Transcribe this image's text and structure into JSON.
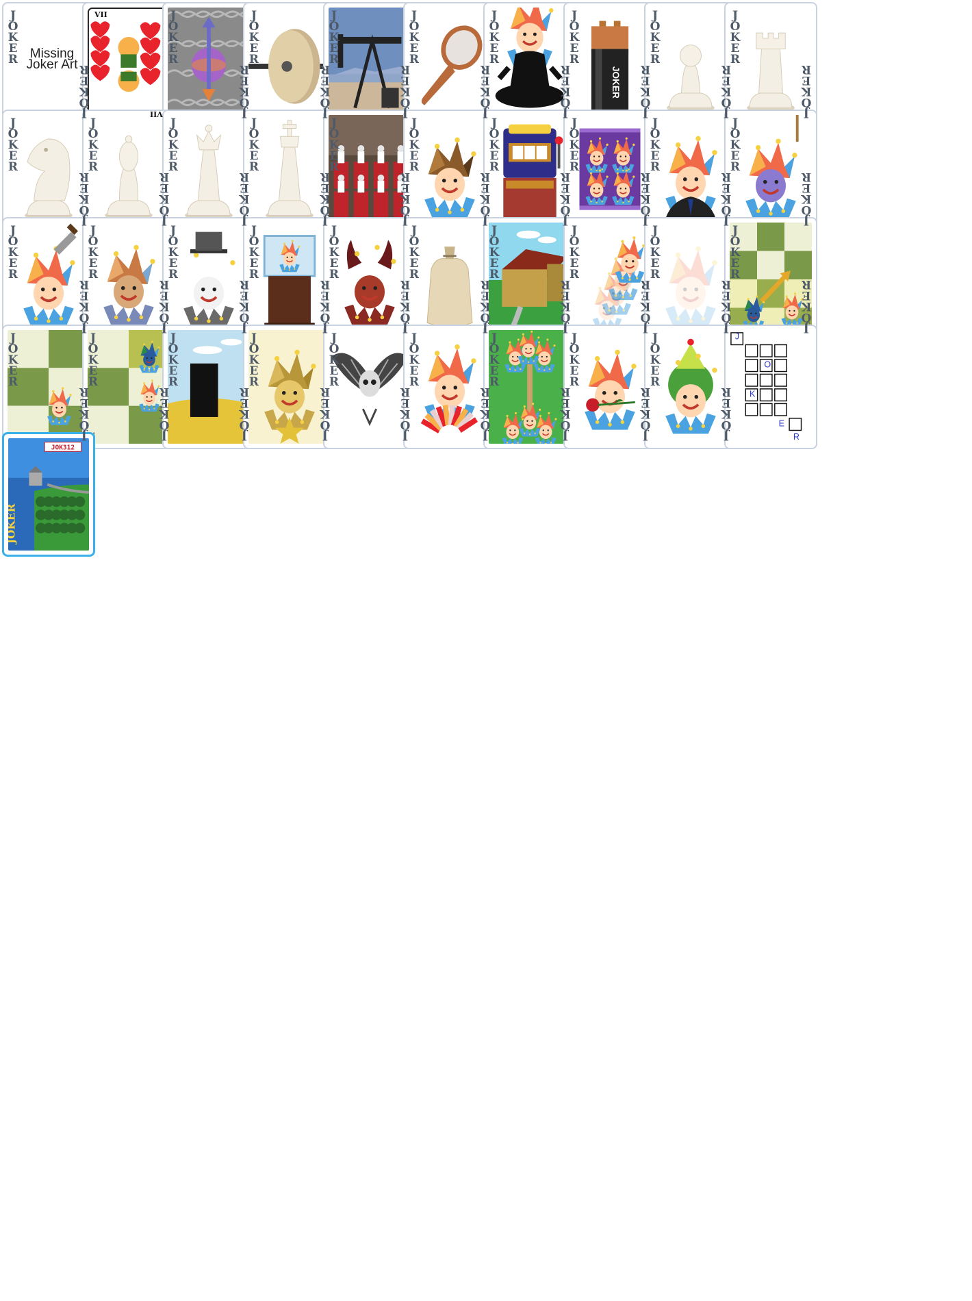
{
  "label": "JOKER",
  "colors": {
    "border": "#c9d2e0",
    "label": "#4e5a68",
    "jester_hat_red": "#f06a4a",
    "jester_hat_orange": "#f7b04a",
    "jester_collar_blue": "#4aa3e0",
    "chess_light": "#eef0d6",
    "chess_dark": "#7a9a4a"
  },
  "cards": [
    {
      "art": "missing",
      "caption": "Missing Joker Art"
    },
    {
      "art": "hearts-seven",
      "corner_top": "VII",
      "corner_bottom": "VII",
      "nolabel": true
    },
    {
      "art": "arrow-globe"
    },
    {
      "art": "millstone"
    },
    {
      "art": "oil-pump"
    },
    {
      "art": "hand-mirror"
    },
    {
      "art": "meditating-jester"
    },
    {
      "art": "battery",
      "battery_text": "JOKER"
    },
    {
      "art": "chess-pawn"
    },
    {
      "art": "chess-rook"
    },
    {
      "art": "chess-knight"
    },
    {
      "art": "chess-bishop"
    },
    {
      "art": "chess-queen"
    },
    {
      "art": "chess-king"
    },
    {
      "art": "marching-band"
    },
    {
      "art": "brown-jester"
    },
    {
      "art": "slot-machine"
    },
    {
      "art": "purple-package"
    },
    {
      "art": "suit-jester"
    },
    {
      "art": "hanging-jester"
    },
    {
      "art": "knife-jester"
    },
    {
      "art": "bronze-jester"
    },
    {
      "art": "tophat-jester"
    },
    {
      "art": "jester-display-case"
    },
    {
      "art": "devil-jester"
    },
    {
      "art": "sack"
    },
    {
      "art": "house"
    },
    {
      "art": "jester-cascade"
    },
    {
      "art": "faded-jester"
    },
    {
      "art": "chess-move-jester"
    },
    {
      "art": "chess-board-jester",
      "rank_a": "5",
      "rank_b": "4"
    },
    {
      "art": "chess-board-two-jesters",
      "rank_a": "5",
      "rank_b": "4"
    },
    {
      "art": "monolith"
    },
    {
      "art": "gold-jester"
    },
    {
      "art": "winged-skull"
    },
    {
      "art": "jester-fan"
    },
    {
      "art": "jester-tree"
    },
    {
      "art": "rose-jester"
    },
    {
      "art": "melon-jester"
    },
    {
      "art": "crossword",
      "letters": [
        "J",
        "O",
        "K",
        "E",
        "R"
      ],
      "nolabel": true
    },
    {
      "art": "landscape",
      "banner": "JOK312",
      "sign": "JOKER",
      "nolabel": true,
      "bordered": true
    }
  ]
}
